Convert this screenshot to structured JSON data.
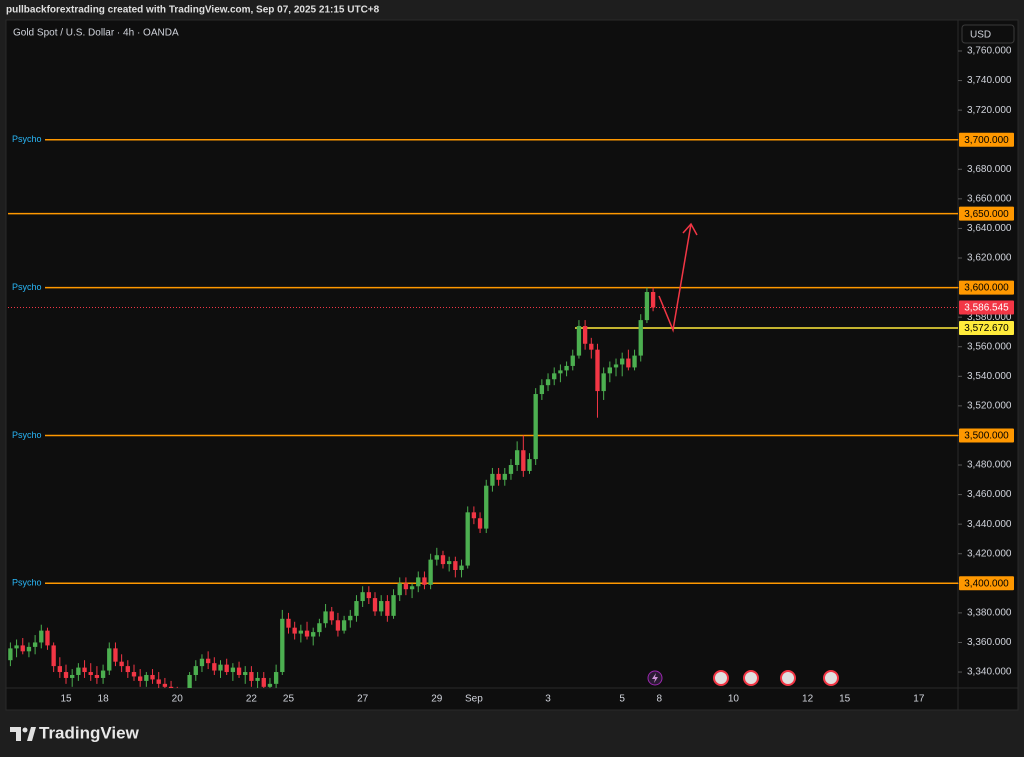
{
  "header": {
    "caption": "pullbackforextrading created with TradingView.com, Sep 07, 2025 21:15 UTC+8"
  },
  "chart_data": {
    "type": "candlestick",
    "title": "Gold Spot / U.S. Dollar · 4h · OANDA",
    "currency": "USD",
    "up_color": "#4caf50",
    "down_color": "#f23645",
    "level_color": "#ff9800",
    "categories": [
      null,
      null,
      null,
      null,
      null,
      null,
      null,
      null,
      null,
      "15",
      null,
      null,
      null,
      null,
      null,
      "18",
      null,
      null,
      null,
      null,
      null,
      null,
      null,
      null,
      null,
      null,
      null,
      "20",
      null,
      null,
      null,
      null,
      null,
      null,
      null,
      null,
      null,
      null,
      null,
      "22",
      null,
      null,
      null,
      null,
      null,
      "25",
      null,
      null,
      null,
      null,
      null,
      null,
      null,
      null,
      null,
      null,
      null,
      "27",
      null,
      null,
      null,
      null,
      null,
      null,
      null,
      null,
      null,
      null,
      null,
      "29",
      null,
      null,
      null,
      null,
      null,
      "Sep",
      null,
      null,
      null,
      null,
      null,
      null,
      null,
      null,
      null,
      null,
      null,
      "3",
      null,
      null,
      null,
      null,
      null,
      null,
      null,
      null,
      null,
      null,
      null,
      "5",
      null,
      null,
      null,
      null,
      null,
      "8",
      null,
      null,
      null,
      null,
      null,
      null,
      null,
      null,
      null,
      null,
      null,
      "10",
      null,
      null,
      null,
      null,
      null,
      null,
      null,
      null,
      null,
      null,
      null,
      "12",
      null,
      null,
      null,
      null,
      null,
      "15",
      null,
      null,
      null,
      null,
      null,
      null,
      null,
      null,
      null,
      null,
      null,
      "17",
      null,
      null,
      null,
      null,
      null,
      null
    ],
    "ohlc": [
      [
        3348,
        3360,
        3344,
        3356
      ],
      [
        3356,
        3362,
        3350,
        3358
      ],
      [
        3358,
        3363,
        3352,
        3354
      ],
      [
        3354,
        3360,
        3350,
        3357
      ],
      [
        3357,
        3365,
        3352,
        3360
      ],
      [
        3360,
        3372,
        3356,
        3368
      ],
      [
        3368,
        3370,
        3355,
        3358
      ],
      [
        3358,
        3360,
        3340,
        3344
      ],
      [
        3344,
        3350,
        3336,
        3340
      ],
      [
        3340,
        3345,
        3332,
        3336
      ],
      [
        3336,
        3342,
        3330,
        3338
      ],
      [
        3338,
        3346,
        3334,
        3343
      ],
      [
        3343,
        3348,
        3336,
        3340
      ],
      [
        3340,
        3346,
        3334,
        3338
      ],
      [
        3338,
        3344,
        3332,
        3336
      ],
      [
        3336,
        3345,
        3332,
        3341
      ],
      [
        3341,
        3360,
        3338,
        3356
      ],
      [
        3356,
        3360,
        3344,
        3347
      ],
      [
        3347,
        3352,
        3340,
        3344
      ],
      [
        3344,
        3348,
        3336,
        3340
      ],
      [
        3340,
        3345,
        3334,
        3337
      ],
      [
        3337,
        3342,
        3330,
        3334
      ],
      [
        3334,
        3340,
        3330,
        3338
      ],
      [
        3338,
        3342,
        3332,
        3335
      ],
      [
        3335,
        3340,
        3328,
        3332
      ],
      [
        3332,
        3336,
        3326,
        3330
      ],
      [
        3330,
        3334,
        3322,
        3326
      ],
      [
        3326,
        3330,
        3320,
        3324
      ],
      [
        3324,
        3328,
        3318,
        3322
      ],
      [
        3322,
        3340,
        3320,
        3338
      ],
      [
        3338,
        3348,
        3334,
        3344
      ],
      [
        3344,
        3352,
        3340,
        3349
      ],
      [
        3349,
        3354,
        3342,
        3346
      ],
      [
        3346,
        3350,
        3338,
        3341
      ],
      [
        3341,
        3348,
        3336,
        3345
      ],
      [
        3345,
        3349,
        3338,
        3340
      ],
      [
        3340,
        3346,
        3334,
        3343
      ],
      [
        3343,
        3347,
        3336,
        3338
      ],
      [
        3338,
        3344,
        3332,
        3340
      ],
      [
        3340,
        3344,
        3330,
        3334
      ],
      [
        3334,
        3340,
        3328,
        3336
      ],
      [
        3336,
        3340,
        3326,
        3330
      ],
      [
        3330,
        3336,
        3324,
        3332
      ],
      [
        3332,
        3345,
        3328,
        3340
      ],
      [
        3340,
        3382,
        3338,
        3376
      ],
      [
        3376,
        3380,
        3366,
        3370
      ],
      [
        3370,
        3374,
        3362,
        3366
      ],
      [
        3366,
        3372,
        3360,
        3368
      ],
      [
        3368,
        3374,
        3362,
        3364
      ],
      [
        3364,
        3370,
        3358,
        3367
      ],
      [
        3367,
        3376,
        3364,
        3373
      ],
      [
        3373,
        3386,
        3370,
        3381
      ],
      [
        3381,
        3384,
        3372,
        3375
      ],
      [
        3375,
        3380,
        3364,
        3368
      ],
      [
        3368,
        3378,
        3366,
        3375
      ],
      [
        3375,
        3382,
        3370,
        3378
      ],
      [
        3378,
        3392,
        3374,
        3388
      ],
      [
        3388,
        3398,
        3384,
        3394
      ],
      [
        3394,
        3398,
        3386,
        3390
      ],
      [
        3390,
        3394,
        3378,
        3381
      ],
      [
        3381,
        3392,
        3378,
        3388
      ],
      [
        3388,
        3392,
        3374,
        3378
      ],
      [
        3378,
        3396,
        3376,
        3392
      ],
      [
        3392,
        3404,
        3388,
        3400
      ],
      [
        3400,
        3404,
        3392,
        3396
      ],
      [
        3396,
        3400,
        3390,
        3398
      ],
      [
        3398,
        3408,
        3394,
        3404
      ],
      [
        3404,
        3408,
        3396,
        3399
      ],
      [
        3399,
        3420,
        3396,
        3416
      ],
      [
        3416,
        3424,
        3412,
        3419
      ],
      [
        3419,
        3422,
        3410,
        3413
      ],
      [
        3413,
        3418,
        3408,
        3415
      ],
      [
        3415,
        3418,
        3404,
        3409
      ],
      [
        3409,
        3416,
        3404,
        3412
      ],
      [
        3412,
        3452,
        3410,
        3448
      ],
      [
        3448,
        3452,
        3440,
        3444
      ],
      [
        3444,
        3448,
        3434,
        3437
      ],
      [
        3437,
        3470,
        3434,
        3466
      ],
      [
        3466,
        3478,
        3462,
        3474
      ],
      [
        3474,
        3478,
        3466,
        3470
      ],
      [
        3470,
        3478,
        3466,
        3474
      ],
      [
        3474,
        3484,
        3470,
        3480
      ],
      [
        3480,
        3496,
        3476,
        3490
      ],
      [
        3490,
        3500,
        3472,
        3476
      ],
      [
        3476,
        3488,
        3474,
        3484
      ],
      [
        3484,
        3532,
        3480,
        3528
      ],
      [
        3528,
        3538,
        3524,
        3534
      ],
      [
        3534,
        3542,
        3530,
        3538
      ],
      [
        3538,
        3546,
        3534,
        3542
      ],
      [
        3542,
        3548,
        3536,
        3544
      ],
      [
        3544,
        3550,
        3540,
        3547
      ],
      [
        3547,
        3558,
        3544,
        3554
      ],
      [
        3554,
        3578,
        3552,
        3574
      ],
      [
        3574,
        3578,
        3558,
        3562
      ],
      [
        3562,
        3566,
        3552,
        3558
      ],
      [
        3558,
        3562,
        3512,
        3530
      ],
      [
        3530,
        3546,
        3524,
        3542
      ],
      [
        3542,
        3550,
        3536,
        3546
      ],
      [
        3546,
        3552,
        3540,
        3548
      ],
      [
        3548,
        3556,
        3540,
        3552
      ],
      [
        3552,
        3558,
        3544,
        3546
      ],
      [
        3546,
        3558,
        3544,
        3554
      ],
      [
        3554,
        3582,
        3550,
        3578
      ],
      [
        3578,
        3600,
        3576,
        3597
      ],
      [
        3597,
        3600,
        3584,
        3586.545
      ],
      null,
      null,
      null,
      null,
      null,
      null,
      null,
      null,
      null,
      null,
      null,
      null,
      null,
      null,
      null,
      null,
      null,
      null,
      null,
      null,
      null,
      null,
      null,
      null,
      null,
      null,
      null,
      null,
      null,
      null,
      null,
      null,
      null,
      null,
      null,
      null,
      null,
      null,
      null,
      null,
      null,
      null,
      null,
      null,
      null,
      null,
      null,
      null,
      null
    ],
    "ylim": [
      3329.2,
      3779.6
    ],
    "yticks": [
      {
        "value": 3340,
        "label": "3,340.000"
      },
      {
        "value": 3360,
        "label": "3,360.000"
      },
      {
        "value": 3380,
        "label": "3,380.000"
      },
      {
        "value": 3400,
        "label": "3,400.000"
      },
      {
        "value": 3420,
        "label": "3,420.000"
      },
      {
        "value": 3440,
        "label": "3,440.000"
      },
      {
        "value": 3460,
        "label": "3,460.000"
      },
      {
        "value": 3480,
        "label": "3,480.000"
      },
      {
        "value": 3500,
        "label": "3,500.000"
      },
      {
        "value": 3520,
        "label": "3,520.000"
      },
      {
        "value": 3540,
        "label": "3,540.000"
      },
      {
        "value": 3560,
        "label": "3,560.000"
      },
      {
        "value": 3580,
        "label": "3,580.000"
      },
      {
        "value": 3600,
        "label": "3,600.000"
      },
      {
        "value": 3620,
        "label": "3,620.000"
      },
      {
        "value": 3640,
        "label": "3,640.000"
      },
      {
        "value": 3660,
        "label": "3,660.000"
      },
      {
        "value": 3680,
        "label": "3,680.000"
      },
      {
        "value": 3700,
        "label": "3,700.000"
      },
      {
        "value": 3720,
        "label": "3,720.000"
      },
      {
        "value": 3740,
        "label": "3,740.000"
      },
      {
        "value": 3760,
        "label": "3,760.000"
      }
    ],
    "levels": [
      {
        "value": 3700,
        "label": "3,700.000",
        "name": "Psycho"
      },
      {
        "value": 3650,
        "label": "3,650.000"
      },
      {
        "value": 3600,
        "label": "3,600.000",
        "name": "Psycho"
      },
      {
        "value": 3500,
        "label": "3,500.000",
        "name": "Psycho"
      },
      {
        "value": 3400,
        "label": "3,400.000",
        "name": "Psycho"
      }
    ],
    "marker_line": {
      "value": 3572.67,
      "label": "3,572.670",
      "color": "#ffeb3b"
    },
    "last_price": {
      "value": 3586.545,
      "label": "3,586.545",
      "color": "#f23645"
    }
  },
  "footer": {
    "brand": "TradingView"
  }
}
